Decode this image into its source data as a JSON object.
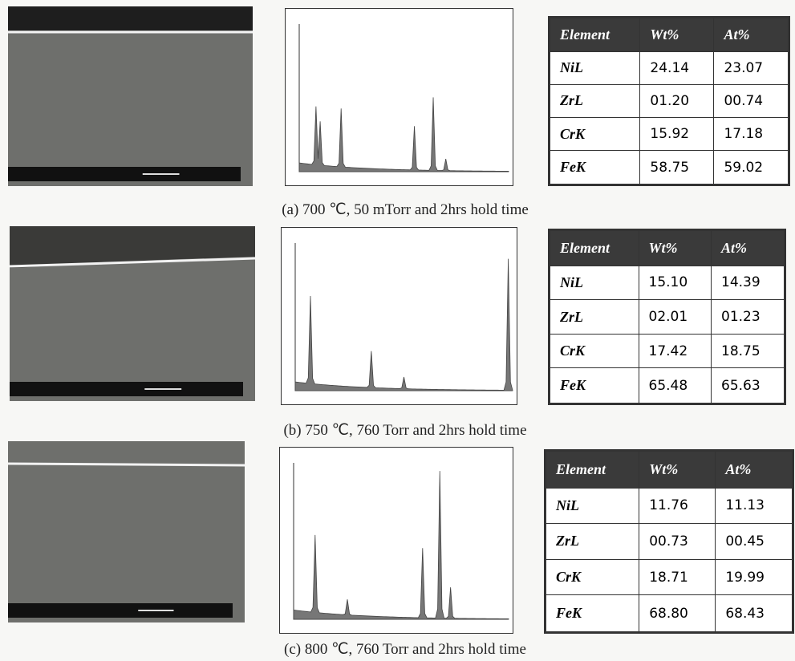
{
  "panels": [
    {
      "caption": "(a) 700 ℃, 50 mTorr and 2hrs hold time",
      "table": {
        "header": [
          "Element",
          "Wt%",
          "At%"
        ],
        "rows": [
          [
            "NiL",
            "24.14",
            "23.07"
          ],
          [
            "ZrL",
            "01.20",
            "00.74"
          ],
          [
            "CrK",
            "15.92",
            "17.18"
          ],
          [
            "FeK",
            "58.75",
            "59.02"
          ]
        ]
      }
    },
    {
      "caption": "(b) 750 ℃, 760 Torr and 2hrs hold time",
      "table": {
        "header": [
          "Element",
          "Wt%",
          "At%"
        ],
        "rows": [
          [
            "NiL",
            "15.10",
            "14.39"
          ],
          [
            "ZrL",
            "02.01",
            "01.23"
          ],
          [
            "CrK",
            "17.42",
            "18.75"
          ],
          [
            "FeK",
            "65.48",
            "65.63"
          ]
        ]
      }
    },
    {
      "caption": "(c) 800 ℃, 760 Torr and 2hrs hold time",
      "table": {
        "header": [
          "Element",
          "Wt%",
          "At%"
        ],
        "rows": [
          [
            "NiL",
            "11.76",
            "11.13"
          ],
          [
            "ZrL",
            "00.73",
            "00.45"
          ],
          [
            "CrK",
            "18.71",
            "19.99"
          ],
          [
            "FeK",
            "68.80",
            "68.43"
          ]
        ]
      }
    }
  ]
}
